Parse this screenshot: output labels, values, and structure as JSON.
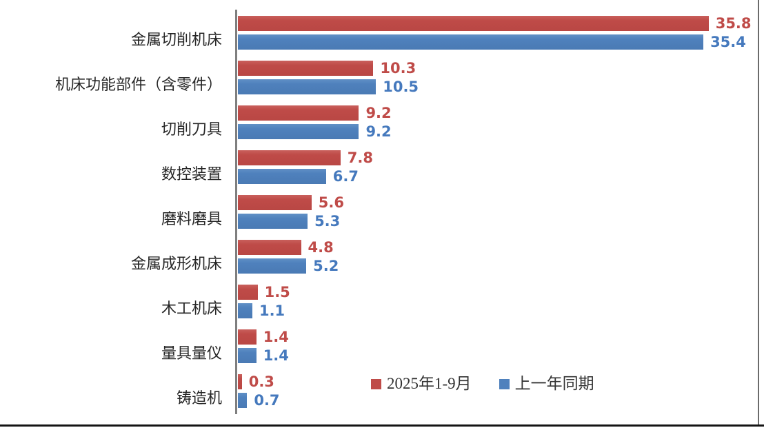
{
  "chart_data": {
    "type": "bar",
    "orientation": "horizontal",
    "title": "",
    "xlabel": "",
    "ylabel": "",
    "xlim": [
      0,
      36
    ],
    "gridlines": false,
    "legend_position": "bottom",
    "value_labels_shown": true,
    "categories": [
      "金属切削机床",
      "机床功能部件（含零件）",
      "切削刀具",
      "数控装置",
      "磨料磨具",
      "金属成形机床",
      "木工机床",
      "量具量仪",
      "铸造机"
    ],
    "series": [
      {
        "name": "2025年1-9月",
        "color": "#bf4b48",
        "values": [
          35.8,
          10.3,
          9.2,
          7.8,
          5.6,
          4.8,
          1.5,
          1.4,
          0.3
        ]
      },
      {
        "name": "上一年同期",
        "color": "#4f81bd",
        "values": [
          35.4,
          10.5,
          9.2,
          6.7,
          5.3,
          5.2,
          1.1,
          1.4,
          0.7
        ]
      }
    ]
  },
  "legend": {
    "items": [
      {
        "label": "2025年1-9月",
        "color": "#bf4b48"
      },
      {
        "label": "上一年同期",
        "color": "#4f81bd"
      }
    ]
  },
  "colors": {
    "series1": "#bf4b48",
    "series2": "#4f81bd",
    "axis": "#7f7f7f",
    "category_text": "#262626",
    "legend_text": "#333333",
    "frame_bottom": "#141414",
    "frame_right": "#6b6b6b",
    "background": "#ffffff"
  }
}
